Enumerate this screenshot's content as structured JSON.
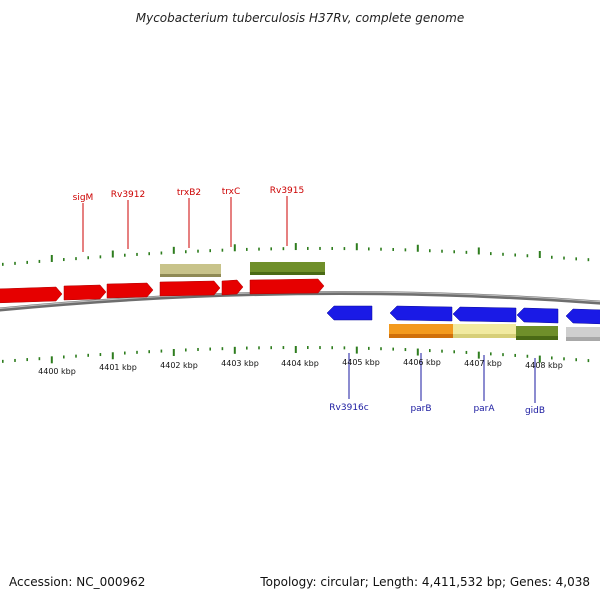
{
  "title": "Mycobacterium tuberculosis H37Rv, complete genome",
  "footer": {
    "accession": "Accession: NC_000962",
    "summary": "Topology: circular; Length: 4,411,532 bp; Genes: 4,038"
  },
  "colors": {
    "plus_strand_label": "#cc0000",
    "minus_strand_label": "#1a1aa0",
    "tick": "#2e7d1e",
    "backbone": "#7a7a7a"
  },
  "scale": {
    "tick_labels": [
      "4400 kbp",
      "4401 kbp",
      "4402 kbp",
      "4403 kbp",
      "4404 kbp",
      "4405 kbp",
      "4406 kbp",
      "4407 kbp",
      "4408 kbp"
    ]
  },
  "gene_labels": [
    {
      "name": "sigM",
      "strand": "plus"
    },
    {
      "name": "Rv3912",
      "strand": "plus"
    },
    {
      "name": "trxB2",
      "strand": "plus"
    },
    {
      "name": "trxC",
      "strand": "plus"
    },
    {
      "name": "Rv3915",
      "strand": "plus"
    },
    {
      "name": "Rv3916c",
      "strand": "minus"
    },
    {
      "name": "parB",
      "strand": "minus"
    },
    {
      "name": "parA",
      "strand": "minus"
    },
    {
      "name": "gidB",
      "strand": "minus"
    }
  ]
}
